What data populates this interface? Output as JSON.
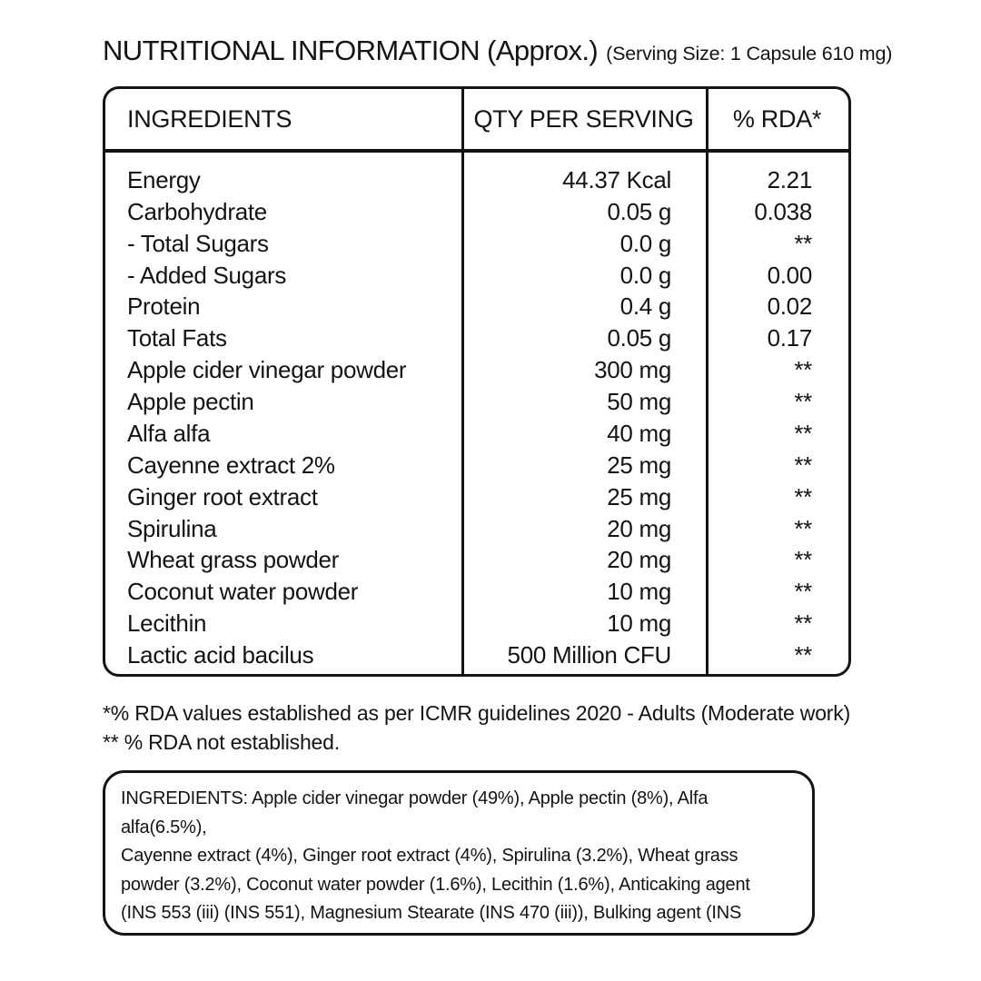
{
  "header": {
    "title": "NUTRITIONAL INFORMATION (Approx.)",
    "serving_size": "(Serving Size: 1 Capsule 610 mg)"
  },
  "table": {
    "headers": {
      "ingredients": "INGREDIENTS",
      "qty": "QTY PER SERVING",
      "rda": "% RDA*"
    },
    "rows": [
      {
        "name": "Energy",
        "qty": "44.37 Kcal",
        "rda": "2.21"
      },
      {
        "name": "Carbohydrate",
        "qty": "0.05 g",
        "rda": "0.038"
      },
      {
        "name": "- Total Sugars",
        "qty": "0.0 g",
        "rda": "**"
      },
      {
        "name": "- Added Sugars",
        "qty": "0.0 g",
        "rda": "0.00"
      },
      {
        "name": "Protein",
        "qty": "0.4 g",
        "rda": "0.02"
      },
      {
        "name": "Total Fats",
        "qty": "0.05 g",
        "rda": "0.17"
      },
      {
        "name": "Apple cider vinegar powder",
        "qty": "300 mg",
        "rda": "**"
      },
      {
        "name": "Apple pectin",
        "qty": "50 mg",
        "rda": "**"
      },
      {
        "name": "Alfa alfa",
        "qty": "40 mg",
        "rda": "**"
      },
      {
        "name": "Cayenne extract 2%",
        "qty": "25 mg",
        "rda": "**"
      },
      {
        "name": "Ginger root extract",
        "qty": "25 mg",
        "rda": "**"
      },
      {
        "name": "Spirulina",
        "qty": "20 mg",
        "rda": "**"
      },
      {
        "name": "Wheat grass powder",
        "qty": "20 mg",
        "rda": "**"
      },
      {
        "name": "Coconut water powder",
        "qty": "10 mg",
        "rda": "**"
      },
      {
        "name": "Lecithin",
        "qty": "10 mg",
        "rda": "**"
      },
      {
        "name": "Lactic acid bacilus",
        "qty": "500 Million CFU",
        "rda": "**"
      }
    ]
  },
  "footnotes": {
    "line1": "*% RDA values established as per ICMR guidelines 2020 - Adults (Moderate work)",
    "line2": "** % RDA not established."
  },
  "ingredients_box": {
    "lines": [
      "INGREDIENTS: Apple cider vinegar powder (49%), Apple pectin (8%), Alfa",
      "alfa(6.5%),",
      "Cayenne extract (4%), Ginger root extract (4%), Spirulina (3.2%), Wheat grass",
      "powder (3.2%), Coconut water powder (1.6%), Lecithin (1.6%), Anticaking agent",
      "(INS 553 (iii) (INS 551), Magnesium Stearate (INS 470 (iii)), Bulking agent (INS"
    ]
  },
  "colors": {
    "text": "#141414",
    "border": "#141414",
    "background": "#ffffff"
  }
}
